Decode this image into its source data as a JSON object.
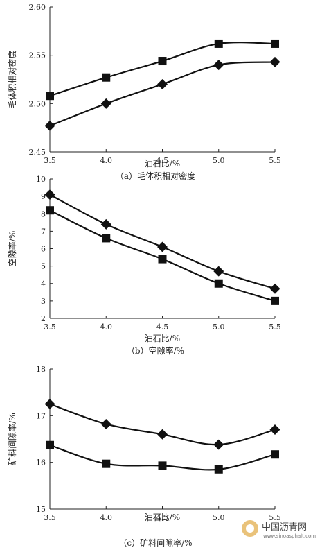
{
  "chart_data": [
    {
      "type": "line",
      "xlabel": "油石比/%",
      "ylabel": "毛体积相对密度",
      "caption": "（a）毛体积相对密度",
      "x": [
        3.5,
        4.0,
        4.5,
        5.0,
        5.5
      ],
      "x_ticks": [
        "3.5",
        "4.0",
        "4.5",
        "5.0",
        "5.5"
      ],
      "xlim": [
        3.5,
        5.5
      ],
      "ylim": [
        2.45,
        2.6
      ],
      "y_ticks": [
        "2.45",
        "2.50",
        "2.55",
        "2.60"
      ],
      "series": [
        {
          "marker": "square",
          "values": [
            2.508,
            2.527,
            2.544,
            2.562,
            2.562
          ]
        },
        {
          "marker": "diamond",
          "values": [
            2.477,
            2.5,
            2.52,
            2.54,
            2.543
          ]
        }
      ]
    },
    {
      "type": "line",
      "xlabel": "油石比/%",
      "ylabel": "空隙率/%",
      "caption": "（b）空隙率/%",
      "x": [
        3.5,
        4.0,
        4.5,
        5.0,
        5.5
      ],
      "x_ticks": [
        "3.5",
        "4.0",
        "4.5",
        "5.0",
        "5.5"
      ],
      "xlim": [
        3.5,
        5.5
      ],
      "ylim": [
        2,
        10
      ],
      "y_ticks": [
        "2",
        "3",
        "4",
        "5",
        "6",
        "7",
        "8",
        "9",
        "10"
      ],
      "series": [
        {
          "marker": "diamond",
          "values": [
            9.1,
            7.4,
            6.1,
            4.7,
            3.7
          ]
        },
        {
          "marker": "square",
          "values": [
            8.2,
            6.6,
            5.4,
            4.0,
            3.0
          ]
        }
      ]
    },
    {
      "type": "line",
      "xlabel": "油石比/%",
      "ylabel": "矿料间隙率/%",
      "caption": "（c）矿料间隙率/%",
      "x": [
        3.5,
        4.0,
        4.5,
        5.0,
        5.5
      ],
      "x_ticks": [
        "3.5",
        "4.0",
        "4.5",
        "5.0",
        "5.5"
      ],
      "xlim": [
        3.5,
        5.5
      ],
      "ylim": [
        15,
        18
      ],
      "y_ticks": [
        "15",
        "16",
        "17",
        "18"
      ],
      "series": [
        {
          "marker": "diamond",
          "values": [
            17.25,
            16.82,
            16.6,
            16.38,
            16.7
          ]
        },
        {
          "marker": "square",
          "values": [
            16.37,
            15.97,
            15.93,
            15.85,
            16.17
          ]
        }
      ]
    }
  ],
  "watermark": {
    "text": "中国沥青网",
    "url": "www.sinoasphalt.com"
  }
}
